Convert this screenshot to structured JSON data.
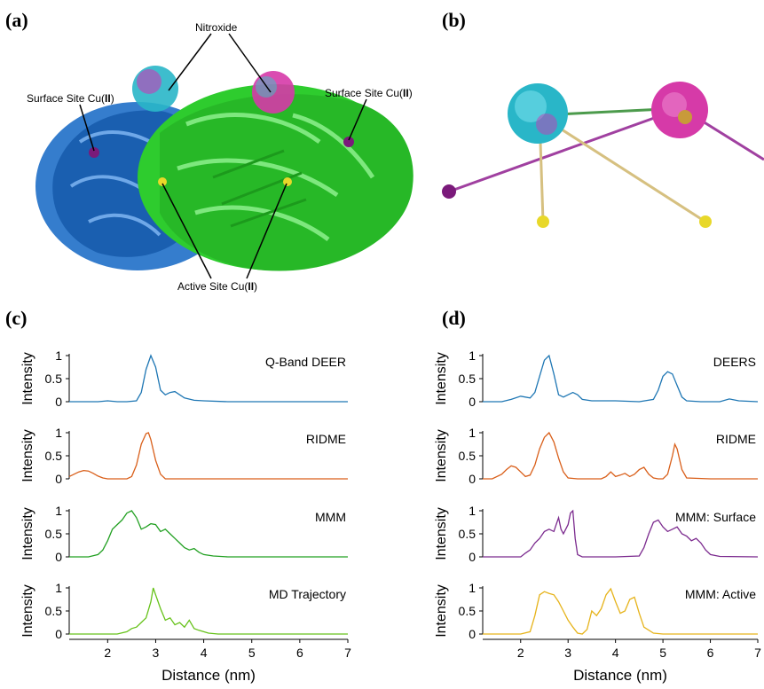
{
  "figure": {
    "panel_labels": {
      "a": "(a)",
      "b": "(b)",
      "c": "(c)",
      "d": "(d)"
    },
    "callouts": {
      "nitroxide": "Nitroxide",
      "surface_left_pre": "Surface Site Cu(",
      "surface_left_bold": "II",
      "surface_left_post": ")",
      "surface_right_pre": "Surface Site Cu(",
      "surface_right_bold": "II",
      "surface_right_post": ")",
      "active_pre": "Active Site Cu(",
      "active_bold": "II",
      "active_post": ")"
    },
    "colors": {
      "protein_chain_a": "#1f6fc8",
      "protein_chain_b": "#2ecc2e",
      "nitroxide_cyan": "#29b6c8",
      "nitroxide_magenta": "#d63aa8",
      "cu_surface": "#7a1a7a",
      "cu_active": "#e8d82a",
      "line_green": "#4c9b4c",
      "line_purple": "#a040a0",
      "line_tan": "#d6c080"
    }
  },
  "chart_data": [
    {
      "panel": "c",
      "row": 0,
      "type": "line",
      "series": [
        {
          "name": "Q-Band DEER",
          "color": "#1f77b4"
        }
      ],
      "ylabel": "Intensity",
      "yticks": [
        "0",
        "0.5",
        "1"
      ],
      "ylim": [
        0,
        1
      ],
      "xlim": [
        1.2,
        7
      ],
      "x": [
        1.2,
        1.5,
        1.8,
        2.0,
        2.2,
        2.4,
        2.6,
        2.7,
        2.8,
        2.9,
        3.0,
        3.1,
        3.2,
        3.3,
        3.4,
        3.5,
        3.6,
        3.8,
        4.0,
        4.5,
        5.0,
        5.5,
        6.0,
        6.5,
        7.0
      ],
      "y": [
        0,
        0,
        0,
        0.02,
        0,
        0,
        0.02,
        0.2,
        0.7,
        1.0,
        0.75,
        0.25,
        0.15,
        0.2,
        0.22,
        0.15,
        0.08,
        0.03,
        0.02,
        0,
        0,
        0,
        0,
        0,
        0
      ]
    },
    {
      "panel": "c",
      "row": 1,
      "type": "line",
      "series": [
        {
          "name": "RIDME",
          "color": "#d95f1a"
        }
      ],
      "ylabel": "Intensity",
      "yticks": [
        "0",
        "0.5",
        "1"
      ],
      "ylim": [
        0,
        1
      ],
      "xlim": [
        1.2,
        7
      ],
      "x": [
        1.2,
        1.3,
        1.4,
        1.5,
        1.6,
        1.7,
        1.8,
        1.9,
        2.0,
        2.2,
        2.4,
        2.5,
        2.6,
        2.7,
        2.8,
        2.85,
        2.9,
        3.0,
        3.1,
        3.2,
        3.5,
        4.0,
        5.0,
        6.0,
        7.0
      ],
      "y": [
        0.05,
        0.1,
        0.15,
        0.18,
        0.17,
        0.12,
        0.06,
        0.02,
        0,
        0,
        0,
        0.05,
        0.3,
        0.75,
        0.98,
        1.0,
        0.85,
        0.4,
        0.1,
        0,
        0,
        0,
        0,
        0,
        0
      ]
    },
    {
      "panel": "c",
      "row": 2,
      "type": "line",
      "series": [
        {
          "name": "MMM",
          "color": "#22a022"
        }
      ],
      "ylabel": "Intensity",
      "yticks": [
        "0",
        "0.5",
        "1"
      ],
      "ylim": [
        0,
        1
      ],
      "xlim": [
        1.2,
        7
      ],
      "x": [
        1.2,
        1.6,
        1.8,
        1.9,
        2.0,
        2.1,
        2.2,
        2.3,
        2.4,
        2.5,
        2.6,
        2.7,
        2.8,
        2.9,
        3.0,
        3.1,
        3.2,
        3.3,
        3.4,
        3.5,
        3.6,
        3.7,
        3.8,
        3.9,
        4.0,
        4.2,
        4.5,
        5.0,
        7.0
      ],
      "y": [
        0,
        0,
        0.05,
        0.15,
        0.35,
        0.6,
        0.7,
        0.8,
        0.95,
        1.0,
        0.85,
        0.6,
        0.65,
        0.72,
        0.7,
        0.55,
        0.6,
        0.5,
        0.4,
        0.3,
        0.2,
        0.15,
        0.18,
        0.1,
        0.05,
        0.02,
        0,
        0,
        0
      ]
    },
    {
      "panel": "c",
      "row": 3,
      "type": "line",
      "series": [
        {
          "name": "MD Trajectory",
          "color": "#66c21a"
        }
      ],
      "ylabel": "Intensity",
      "yticks": [
        "0",
        "0.5",
        "1"
      ],
      "ylim": [
        0,
        1
      ],
      "xlim": [
        1.2,
        7
      ],
      "x": [
        1.2,
        2.2,
        2.4,
        2.5,
        2.6,
        2.7,
        2.8,
        2.9,
        2.95,
        3.0,
        3.1,
        3.2,
        3.3,
        3.4,
        3.5,
        3.6,
        3.7,
        3.8,
        3.9,
        4.0,
        4.1,
        4.2,
        4.3,
        5.0,
        7.0
      ],
      "y": [
        0,
        0,
        0.05,
        0.12,
        0.15,
        0.25,
        0.35,
        0.7,
        1.0,
        0.85,
        0.55,
        0.3,
        0.35,
        0.2,
        0.25,
        0.15,
        0.3,
        0.12,
        0.08,
        0.05,
        0.02,
        0.01,
        0,
        0,
        0
      ],
      "xticks": [
        "2",
        "3",
        "4",
        "5",
        "6",
        "7"
      ],
      "xlabel": "Distance (nm)"
    },
    {
      "panel": "d",
      "row": 0,
      "type": "line",
      "series": [
        {
          "name": "DEERS",
          "color": "#1f77b4"
        }
      ],
      "ylabel": "Intensity",
      "yticks": [
        "0",
        "0.5",
        "1"
      ],
      "ylim": [
        0,
        1
      ],
      "xlim": [
        1.2,
        7
      ],
      "x": [
        1.2,
        1.6,
        1.8,
        2.0,
        2.2,
        2.3,
        2.4,
        2.5,
        2.6,
        2.7,
        2.8,
        2.9,
        3.0,
        3.1,
        3.2,
        3.3,
        3.5,
        3.8,
        4.0,
        4.5,
        4.8,
        4.9,
        5.0,
        5.1,
        5.2,
        5.3,
        5.4,
        5.5,
        5.8,
        6.2,
        6.4,
        6.6,
        7.0
      ],
      "y": [
        0,
        0,
        0.05,
        0.12,
        0.08,
        0.2,
        0.55,
        0.9,
        1.0,
        0.6,
        0.15,
        0.1,
        0.15,
        0.2,
        0.15,
        0.05,
        0.02,
        0.02,
        0.02,
        0,
        0.05,
        0.25,
        0.55,
        0.65,
        0.6,
        0.35,
        0.1,
        0.02,
        0,
        0,
        0.06,
        0.02,
        0
      ]
    },
    {
      "panel": "d",
      "row": 1,
      "type": "line",
      "series": [
        {
          "name": "RIDME",
          "color": "#d95f1a"
        }
      ],
      "ylabel": "Intensity",
      "yticks": [
        "0",
        "0.5",
        "1"
      ],
      "ylim": [
        0,
        1
      ],
      "xlim": [
        1.2,
        7
      ],
      "x": [
        1.2,
        1.4,
        1.6,
        1.7,
        1.8,
        1.9,
        2.0,
        2.1,
        2.2,
        2.3,
        2.4,
        2.5,
        2.6,
        2.7,
        2.8,
        2.9,
        3.0,
        3.2,
        3.5,
        3.7,
        3.8,
        3.9,
        4.0,
        4.1,
        4.2,
        4.3,
        4.4,
        4.5,
        4.6,
        4.7,
        4.8,
        4.9,
        5.0,
        5.1,
        5.2,
        5.25,
        5.3,
        5.4,
        5.5,
        6.0,
        7.0
      ],
      "y": [
        0,
        0,
        0.1,
        0.2,
        0.28,
        0.25,
        0.15,
        0.05,
        0.08,
        0.3,
        0.65,
        0.9,
        1.0,
        0.8,
        0.45,
        0.15,
        0.02,
        0,
        0,
        0,
        0.05,
        0.15,
        0.05,
        0.08,
        0.12,
        0.05,
        0.1,
        0.2,
        0.25,
        0.1,
        0.02,
        0,
        0,
        0.1,
        0.5,
        0.75,
        0.65,
        0.2,
        0.02,
        0,
        0
      ]
    },
    {
      "panel": "d",
      "row": 2,
      "type": "line",
      "series": [
        {
          "name": "MMM: Surface",
          "color": "#7b2a8e"
        }
      ],
      "ylabel": "Intensity",
      "yticks": [
        "0",
        "0.5",
        "1"
      ],
      "ylim": [
        0,
        1
      ],
      "xlim": [
        1.2,
        7
      ],
      "x": [
        1.2,
        2.0,
        2.1,
        2.2,
        2.3,
        2.4,
        2.5,
        2.6,
        2.7,
        2.75,
        2.8,
        2.85,
        2.9,
        3.0,
        3.05,
        3.1,
        3.15,
        3.2,
        3.3,
        3.5,
        4.0,
        4.5,
        4.6,
        4.7,
        4.8,
        4.9,
        5.0,
        5.1,
        5.2,
        5.3,
        5.4,
        5.5,
        5.6,
        5.7,
        5.8,
        5.9,
        6.0,
        6.2,
        7.0
      ],
      "y": [
        0,
        0,
        0.08,
        0.15,
        0.3,
        0.4,
        0.55,
        0.6,
        0.55,
        0.7,
        0.85,
        0.6,
        0.5,
        0.7,
        0.95,
        1.0,
        0.4,
        0.05,
        0,
        0,
        0,
        0.02,
        0.2,
        0.5,
        0.75,
        0.8,
        0.65,
        0.55,
        0.6,
        0.65,
        0.5,
        0.45,
        0.35,
        0.4,
        0.3,
        0.15,
        0.05,
        0.01,
        0
      ]
    },
    {
      "panel": "d",
      "row": 3,
      "type": "line",
      "series": [
        {
          "name": "MMM: Active",
          "color": "#e6b31a"
        }
      ],
      "ylabel": "Intensity",
      "yticks": [
        "0",
        "0.5",
        "1"
      ],
      "ylim": [
        0,
        1
      ],
      "xlim": [
        1.2,
        7
      ],
      "x": [
        1.2,
        2.0,
        2.2,
        2.3,
        2.4,
        2.5,
        2.6,
        2.7,
        2.8,
        2.9,
        3.0,
        3.1,
        3.2,
        3.3,
        3.4,
        3.5,
        3.6,
        3.7,
        3.8,
        3.9,
        4.0,
        4.1,
        4.2,
        4.3,
        4.4,
        4.5,
        4.6,
        4.8,
        5.0,
        7.0
      ],
      "y": [
        0,
        0,
        0.05,
        0.4,
        0.85,
        0.92,
        0.88,
        0.85,
        0.7,
        0.5,
        0.3,
        0.15,
        0.02,
        0,
        0.1,
        0.5,
        0.4,
        0.55,
        0.85,
        0.98,
        0.7,
        0.45,
        0.5,
        0.75,
        0.8,
        0.45,
        0.15,
        0.02,
        0,
        0
      ],
      "xticks": [
        "2",
        "3",
        "4",
        "5",
        "6",
        "7"
      ],
      "xlabel": "Distance (nm)"
    }
  ]
}
